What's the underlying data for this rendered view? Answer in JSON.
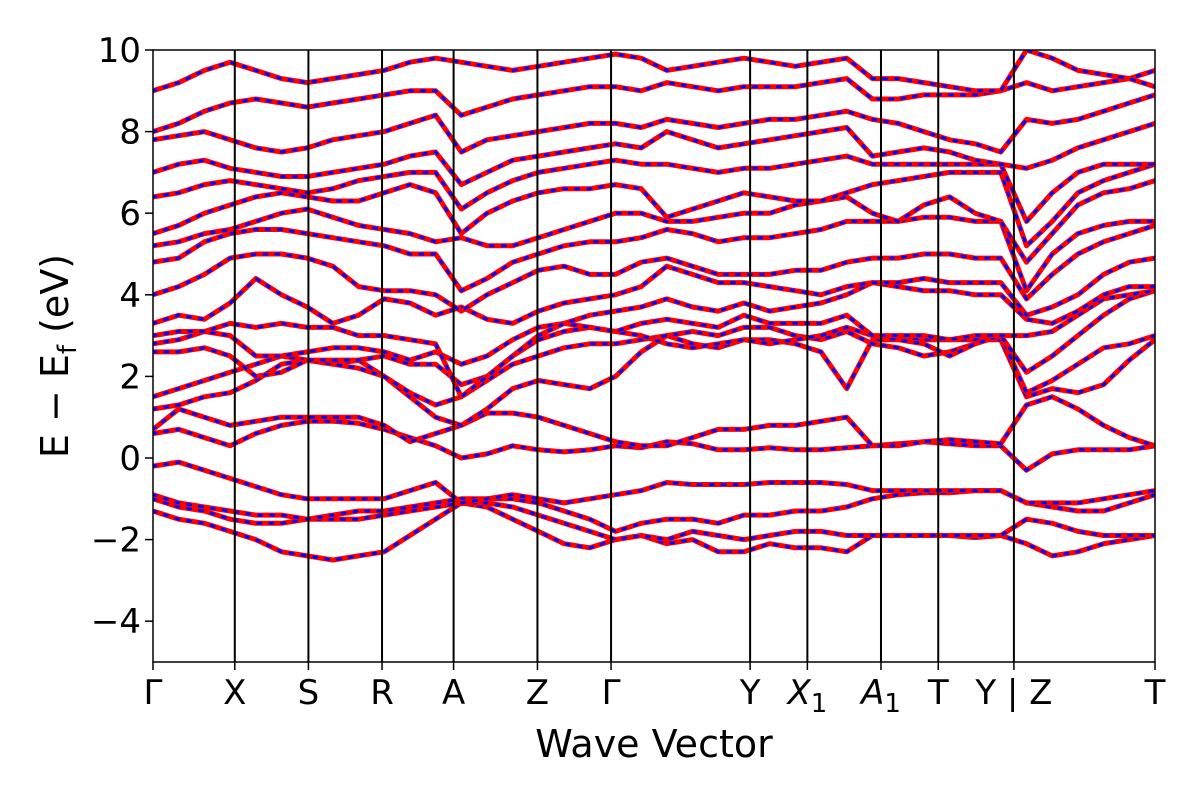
{
  "chart_data": {
    "type": "line",
    "title": "",
    "xlabel": "Wave Vector",
    "ylabel": "E − E_f (eV)",
    "ylabel_main": "E − E",
    "ylabel_sub": "f",
    "ylabel_tail": " (eV)",
    "ylim": [
      -5,
      10
    ],
    "yticks": [
      -4,
      -2,
      0,
      2,
      4,
      6,
      8,
      10
    ],
    "ytick_labels": [
      "−4",
      "−2",
      "0",
      "2",
      "4",
      "6",
      "8",
      "10"
    ],
    "xlim": [
      0,
      24.5
    ],
    "kpoints": [
      {
        "pos": 0.0,
        "label": "Γ"
      },
      {
        "pos": 2.0,
        "label": "X"
      },
      {
        "pos": 3.8,
        "label": "S"
      },
      {
        "pos": 5.6,
        "label": "R"
      },
      {
        "pos": 7.35,
        "label": "A"
      },
      {
        "pos": 9.4,
        "label": "Z"
      },
      {
        "pos": 11.2,
        "label": "Γ"
      },
      {
        "pos": 14.6,
        "label": "Y"
      },
      {
        "pos": 16.0,
        "label": "X",
        "sub": "1"
      },
      {
        "pos": 17.8,
        "label": "A",
        "sub": "1"
      },
      {
        "pos": 19.2,
        "label": "T"
      },
      {
        "pos": 21.05,
        "label": "Y | Z"
      },
      {
        "pos": 24.5,
        "label": "T"
      }
    ],
    "series": [
      {
        "color": "#ff0000",
        "overlay_color": "#0000ff",
        "values": [
          [
            -1.3,
            -1.5,
            -1.6,
            -1.8,
            -2.0,
            -2.3,
            -2.4,
            -2.5,
            -2.4,
            -2.3,
            -1.9,
            -1.5,
            -1.1,
            -1.2,
            -1.5,
            -1.8,
            -2.1,
            -2.2,
            -2.0,
            -1.9,
            -2.1,
            -2.0,
            -2.3,
            -2.3,
            -2.1,
            -2.2,
            -2.2,
            -2.3,
            -1.9,
            -1.9,
            -1.9,
            -1.9,
            -1.95,
            -1.9,
            -2.1,
            -2.4,
            -2.3,
            -2.1,
            -2.0,
            -1.9
          ],
          [
            -1.0,
            -1.2,
            -1.3,
            -1.5,
            -1.6,
            -1.6,
            -1.5,
            -1.5,
            -1.5,
            -1.4,
            -1.3,
            -1.2,
            -1.1,
            -1.1,
            -1.2,
            -1.4,
            -1.6,
            -1.8,
            -2.0,
            -1.9,
            -2.0,
            -1.8,
            -1.9,
            -2.0,
            -1.9,
            -1.8,
            -1.8,
            -1.9,
            -1.9,
            -1.9,
            -1.9,
            -1.9,
            -1.9,
            -1.9,
            -1.5,
            -1.6,
            -1.8,
            -1.9,
            -1.9,
            -1.9
          ],
          [
            -0.9,
            -1.1,
            -1.2,
            -1.3,
            -1.4,
            -1.4,
            -1.5,
            -1.4,
            -1.3,
            -1.3,
            -1.2,
            -1.1,
            -1.0,
            -1.0,
            -1.0,
            -1.1,
            -1.3,
            -1.5,
            -1.8,
            -1.6,
            -1.5,
            -1.5,
            -1.6,
            -1.4,
            -1.4,
            -1.3,
            -1.3,
            -1.2,
            -1.0,
            -0.9,
            -0.85,
            -0.85,
            -0.8,
            -0.8,
            -1.1,
            -1.2,
            -1.3,
            -1.3,
            -1.1,
            -0.9
          ],
          [
            -0.2,
            -0.1,
            -0.3,
            -0.5,
            -0.7,
            -0.9,
            -1.0,
            -1.0,
            -1.0,
            -1.0,
            -0.8,
            -0.6,
            -1.1,
            -1.0,
            -0.9,
            -1.0,
            -1.1,
            -1.0,
            -0.9,
            -0.8,
            -0.6,
            -0.65,
            -0.65,
            -0.65,
            -0.6,
            -0.6,
            -0.6,
            -0.65,
            -0.8,
            -0.8,
            -0.8,
            -0.8,
            -0.8,
            -0.8,
            -1.1,
            -1.1,
            -1.1,
            -1.0,
            -0.9,
            -0.8
          ],
          [
            0.6,
            0.7,
            0.5,
            0.3,
            0.6,
            0.8,
            0.9,
            0.9,
            0.85,
            0.7,
            0.5,
            0.3,
            0.0,
            0.1,
            0.3,
            0.2,
            0.15,
            0.2,
            0.3,
            0.25,
            0.4,
            0.35,
            0.2,
            0.2,
            0.25,
            0.2,
            0.2,
            0.25,
            0.3,
            0.35,
            0.4,
            0.35,
            0.3,
            0.3,
            -0.3,
            0.1,
            0.2,
            0.2,
            0.2,
            0.3
          ],
          [
            0.7,
            1.2,
            1.0,
            0.8,
            0.9,
            1.0,
            1.0,
            1.0,
            1.0,
            0.8,
            0.4,
            0.6,
            0.8,
            1.1,
            1.1,
            1.0,
            0.8,
            0.6,
            0.4,
            0.3,
            0.3,
            0.5,
            0.7,
            0.7,
            0.8,
            0.8,
            0.9,
            1.0,
            0.3,
            0.3,
            0.4,
            0.45,
            0.4,
            0.35,
            1.3,
            1.5,
            1.2,
            0.8,
            0.5,
            0.3
          ],
          [
            1.2,
            1.3,
            1.5,
            1.6,
            1.9,
            2.3,
            2.4,
            2.3,
            2.4,
            2.0,
            1.5,
            1.0,
            0.8,
            1.2,
            1.7,
            1.9,
            1.8,
            1.7,
            2.0,
            2.6,
            3.0,
            2.8,
            2.7,
            2.9,
            2.9,
            2.8,
            2.6,
            1.7,
            2.9,
            2.9,
            2.9,
            2.9,
            2.9,
            2.9,
            1.5,
            1.7,
            1.6,
            1.8,
            2.4,
            2.9
          ],
          [
            1.5,
            1.7,
            1.9,
            2.1,
            2.3,
            2.5,
            2.4,
            2.3,
            2.2,
            2.0,
            1.6,
            1.3,
            1.5,
            1.9,
            2.3,
            2.5,
            2.7,
            2.8,
            2.8,
            2.9,
            3.0,
            3.1,
            3.0,
            3.2,
            3.2,
            3.0,
            2.9,
            3.1,
            2.8,
            2.7,
            2.5,
            2.6,
            2.8,
            3.0,
            1.6,
            1.9,
            2.3,
            2.7,
            2.8,
            3.0
          ],
          [
            2.6,
            2.6,
            2.7,
            2.5,
            2.0,
            2.1,
            2.4,
            2.4,
            2.4,
            2.5,
            2.3,
            2.3,
            1.8,
            2.0,
            2.5,
            2.9,
            3.1,
            3.2,
            3.1,
            3.0,
            2.8,
            2.7,
            2.8,
            2.9,
            2.8,
            2.9,
            3.0,
            3.2,
            3.0,
            2.9,
            2.8,
            2.5,
            2.8,
            3.0,
            2.1,
            2.5,
            3.0,
            3.5,
            3.9,
            4.1
          ],
          [
            2.8,
            2.9,
            3.1,
            3.0,
            2.5,
            2.5,
            2.6,
            2.7,
            2.7,
            2.6,
            2.4,
            2.6,
            2.3,
            2.5,
            2.9,
            3.2,
            3.3,
            3.2,
            3.1,
            3.3,
            3.4,
            3.3,
            3.2,
            3.5,
            3.3,
            3.3,
            3.3,
            3.5,
            3.0,
            3.0,
            3.0,
            2.9,
            3.0,
            3.0,
            3.0,
            3.1,
            3.5,
            3.9,
            4.0,
            4.1
          ],
          [
            3.0,
            3.1,
            3.1,
            3.3,
            3.2,
            3.3,
            3.2,
            3.2,
            3.0,
            3.0,
            2.9,
            2.8,
            1.5,
            2.0,
            2.5,
            3.0,
            3.3,
            3.5,
            3.6,
            3.7,
            3.9,
            3.7,
            3.6,
            3.8,
            3.6,
            3.7,
            3.8,
            4.0,
            4.3,
            4.2,
            4.1,
            4.1,
            4.0,
            4.0,
            3.4,
            3.3,
            3.6,
            4.0,
            4.2,
            4.2
          ],
          [
            3.3,
            3.5,
            3.4,
            3.8,
            4.4,
            4.0,
            3.7,
            3.3,
            3.5,
            3.9,
            3.8,
            3.5,
            3.7,
            3.4,
            3.3,
            3.6,
            3.8,
            3.9,
            4.0,
            4.2,
            4.7,
            4.5,
            4.3,
            4.3,
            4.2,
            4.1,
            4.0,
            4.2,
            4.3,
            4.3,
            4.4,
            4.3,
            4.3,
            4.3,
            3.5,
            3.7,
            4.0,
            4.5,
            4.8,
            4.9
          ],
          [
            4.0,
            4.2,
            4.5,
            4.9,
            5.0,
            5.0,
            4.9,
            4.7,
            4.2,
            4.1,
            4.1,
            4.0,
            3.6,
            4.0,
            4.3,
            4.6,
            4.7,
            4.5,
            4.5,
            4.8,
            4.9,
            4.7,
            4.5,
            4.5,
            4.5,
            4.6,
            4.6,
            4.8,
            4.9,
            4.9,
            5.0,
            5.0,
            4.9,
            4.9,
            3.9,
            4.5,
            5.0,
            5.3,
            5.5,
            5.7
          ],
          [
            4.8,
            4.9,
            5.3,
            5.5,
            5.6,
            5.6,
            5.5,
            5.4,
            5.3,
            5.2,
            5.0,
            5.0,
            4.1,
            4.4,
            4.8,
            5.0,
            5.2,
            5.3,
            5.3,
            5.4,
            5.6,
            5.5,
            5.3,
            5.4,
            5.4,
            5.5,
            5.6,
            5.8,
            5.8,
            5.8,
            5.9,
            5.9,
            5.8,
            5.8,
            4.1,
            5.0,
            5.5,
            5.7,
            5.8,
            5.8
          ],
          [
            5.2,
            5.3,
            5.5,
            5.6,
            5.8,
            6.0,
            6.1,
            5.9,
            5.7,
            5.6,
            5.5,
            5.3,
            5.4,
            5.2,
            5.2,
            5.4,
            5.6,
            5.8,
            6.0,
            6.0,
            5.8,
            5.8,
            5.9,
            6.0,
            6.0,
            6.2,
            6.3,
            6.4,
            6.0,
            5.8,
            6.2,
            6.4,
            6.0,
            5.8,
            4.8,
            5.5,
            6.2,
            6.5,
            6.6,
            6.8
          ],
          [
            5.5,
            5.7,
            6.0,
            6.2,
            6.4,
            6.5,
            6.4,
            6.3,
            6.3,
            6.5,
            6.7,
            6.5,
            5.5,
            6.0,
            6.3,
            6.5,
            6.6,
            6.6,
            6.7,
            6.6,
            5.9,
            6.1,
            6.3,
            6.5,
            6.4,
            6.3,
            6.3,
            6.5,
            6.7,
            6.8,
            6.9,
            7.0,
            7.0,
            7.0,
            5.2,
            5.8,
            6.5,
            6.8,
            7.0,
            7.2
          ],
          [
            6.4,
            6.5,
            6.7,
            6.8,
            6.7,
            6.6,
            6.5,
            6.6,
            6.8,
            6.9,
            7.0,
            7.0,
            6.1,
            6.5,
            6.8,
            7.0,
            7.1,
            7.2,
            7.3,
            7.2,
            7.2,
            7.1,
            7.0,
            7.1,
            7.1,
            7.2,
            7.3,
            7.4,
            7.2,
            7.2,
            7.2,
            7.2,
            7.2,
            7.2,
            5.8,
            6.5,
            7.0,
            7.2,
            7.2,
            7.2
          ],
          [
            7.0,
            7.2,
            7.3,
            7.1,
            7.0,
            6.9,
            6.9,
            7.0,
            7.1,
            7.2,
            7.4,
            7.5,
            6.7,
            7.0,
            7.3,
            7.4,
            7.5,
            7.6,
            7.7,
            7.6,
            8.0,
            7.8,
            7.6,
            7.7,
            7.8,
            7.9,
            8.0,
            8.1,
            7.4,
            7.5,
            7.6,
            7.5,
            7.3,
            7.2,
            7.1,
            7.3,
            7.6,
            7.8,
            8.0,
            8.2
          ],
          [
            7.8,
            7.9,
            8.0,
            7.8,
            7.6,
            7.5,
            7.6,
            7.8,
            7.9,
            8.0,
            8.2,
            8.4,
            7.5,
            7.8,
            7.9,
            8.0,
            8.1,
            8.2,
            8.2,
            8.1,
            8.3,
            8.2,
            8.1,
            8.2,
            8.3,
            8.3,
            8.4,
            8.5,
            8.3,
            8.2,
            8.0,
            7.8,
            7.7,
            7.5,
            8.3,
            8.2,
            8.3,
            8.5,
            8.7,
            8.9
          ],
          [
            8.0,
            8.2,
            8.5,
            8.7,
            8.8,
            8.7,
            8.6,
            8.7,
            8.8,
            8.9,
            9.0,
            9.0,
            8.4,
            8.6,
            8.8,
            8.9,
            9.0,
            9.1,
            9.1,
            9.0,
            9.2,
            9.1,
            9.0,
            9.1,
            9.1,
            9.1,
            9.2,
            9.3,
            8.8,
            8.8,
            8.9,
            8.9,
            8.9,
            9.0,
            9.2,
            9.0,
            9.1,
            9.2,
            9.3,
            9.5
          ],
          [
            9.0,
            9.2,
            9.5,
            9.7,
            9.5,
            9.3,
            9.2,
            9.3,
            9.4,
            9.5,
            9.7,
            9.8,
            9.7,
            9.6,
            9.5,
            9.6,
            9.7,
            9.8,
            9.9,
            9.8,
            9.5,
            9.6,
            9.7,
            9.8,
            9.7,
            9.6,
            9.7,
            9.8,
            9.3,
            9.3,
            9.2,
            9.1,
            9.0,
            9.0,
            10.0,
            9.8,
            9.5,
            9.4,
            9.3,
            9.1
          ]
        ]
      }
    ],
    "grid": false,
    "legend": "none"
  }
}
